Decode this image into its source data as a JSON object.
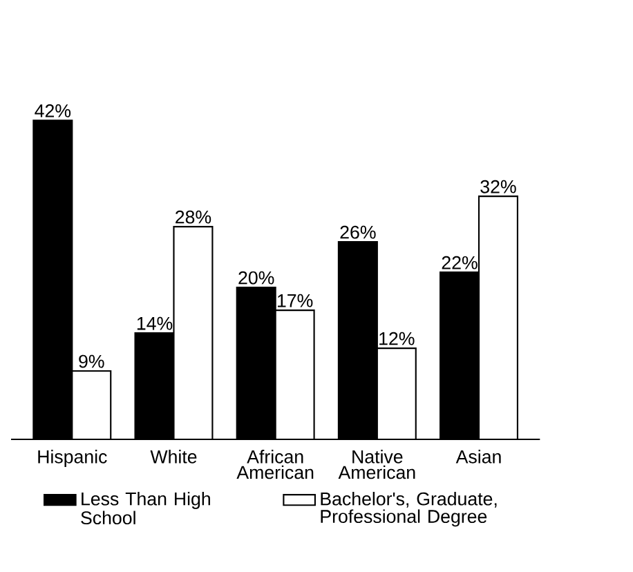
{
  "chart_data": {
    "type": "bar",
    "categories": [
      "Hispanic",
      "White",
      "African American",
      "Native American",
      "Asian"
    ],
    "series": [
      {
        "name": "Less Than High School",
        "color": "#000000",
        "values": [
          42,
          14,
          20,
          26,
          22
        ],
        "value_labels": [
          "42%",
          "14%",
          "20%",
          "26%",
          "22%"
        ]
      },
      {
        "name": "Bachelor's, Graduate, Professional Degree",
        "color": "#ffffff",
        "values": [
          9,
          28,
          17,
          12,
          32
        ],
        "value_labels": [
          "9%",
          "28%",
          "17%",
          "12%",
          "32%"
        ]
      }
    ],
    "legend": "bottom"
  }
}
